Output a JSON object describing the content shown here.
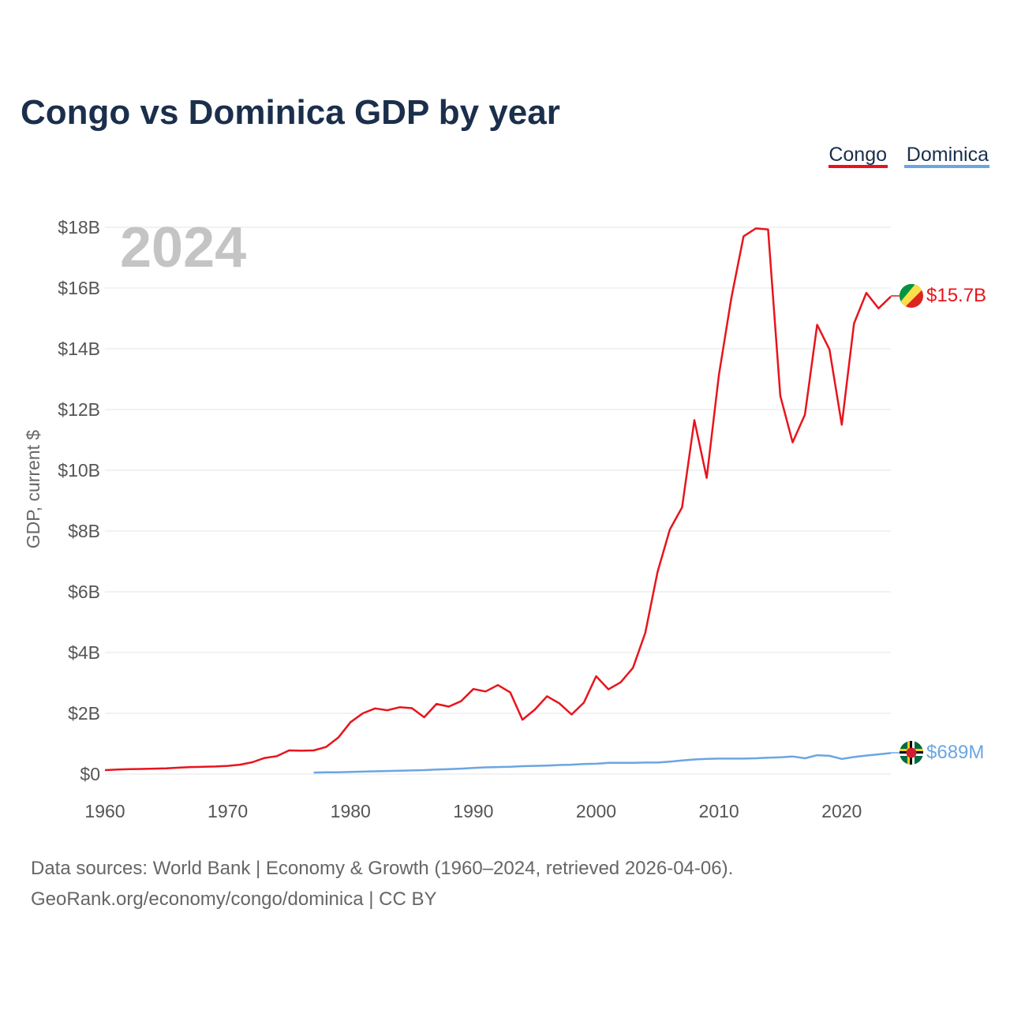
{
  "chart_data": {
    "type": "line",
    "title": "Congo vs Dominica GDP by year",
    "year_mark": "2024",
    "ylabel": "GDP, current $",
    "xlabel": "",
    "xlim": [
      1960,
      2024
    ],
    "ylim": [
      0,
      18
    ],
    "y_unit": "billions USD",
    "x_ticks": [
      1960,
      1970,
      1980,
      1990,
      2000,
      2010,
      2020
    ],
    "y_ticks": [
      {
        "value": 0,
        "label": "$0"
      },
      {
        "value": 2,
        "label": "$2B"
      },
      {
        "value": 4,
        "label": "$4B"
      },
      {
        "value": 6,
        "label": "$6B"
      },
      {
        "value": 8,
        "label": "$8B"
      },
      {
        "value": 10,
        "label": "$10B"
      },
      {
        "value": 12,
        "label": "$12B"
      },
      {
        "value": 14,
        "label": "$14B"
      },
      {
        "value": 16,
        "label": "$16B"
      },
      {
        "value": 18,
        "label": "$18B"
      }
    ],
    "legend_position": "top-right",
    "series": [
      {
        "name": "Congo",
        "color": "#e8141c",
        "end_label": "$15.7B",
        "flag_icon": "congo-flag-icon",
        "x": [
          1960,
          1961,
          1962,
          1963,
          1964,
          1965,
          1966,
          1967,
          1968,
          1969,
          1970,
          1971,
          1972,
          1973,
          1974,
          1975,
          1976,
          1977,
          1978,
          1979,
          1980,
          1981,
          1982,
          1983,
          1984,
          1985,
          1986,
          1987,
          1988,
          1989,
          1990,
          1991,
          1992,
          1993,
          1994,
          1995,
          1996,
          1997,
          1998,
          1999,
          2000,
          2001,
          2002,
          2003,
          2004,
          2005,
          2006,
          2007,
          2008,
          2009,
          2010,
          2011,
          2012,
          2013,
          2014,
          2015,
          2016,
          2017,
          2018,
          2019,
          2020,
          2021,
          2022,
          2023,
          2024
        ],
        "values": [
          0.13,
          0.15,
          0.16,
          0.17,
          0.18,
          0.19,
          0.21,
          0.23,
          0.24,
          0.25,
          0.27,
          0.31,
          0.39,
          0.53,
          0.59,
          0.78,
          0.77,
          0.78,
          0.89,
          1.2,
          1.71,
          2.0,
          2.16,
          2.1,
          2.2,
          2.17,
          1.87,
          2.31,
          2.22,
          2.4,
          2.8,
          2.72,
          2.93,
          2.69,
          1.79,
          2.12,
          2.56,
          2.33,
          1.96,
          2.35,
          3.22,
          2.79,
          3.02,
          3.5,
          4.65,
          6.65,
          8.05,
          8.78,
          11.65,
          9.75,
          13.14,
          15.65,
          17.7,
          17.96,
          17.93,
          12.45,
          10.92,
          11.83,
          14.79,
          13.98,
          11.5,
          14.83,
          15.84,
          15.33,
          15.72
        ]
      },
      {
        "name": "Dominica",
        "color": "#6aa6e2",
        "end_label": "$689M",
        "flag_icon": "dominica-flag-icon",
        "x": [
          1977,
          1978,
          1979,
          1980,
          1981,
          1982,
          1983,
          1984,
          1985,
          1986,
          1987,
          1988,
          1989,
          1990,
          1991,
          1992,
          1993,
          1994,
          1995,
          1996,
          1997,
          1998,
          1999,
          2000,
          2001,
          2002,
          2003,
          2004,
          2005,
          2006,
          2007,
          2008,
          2009,
          2010,
          2011,
          2012,
          2013,
          2014,
          2015,
          2016,
          2017,
          2018,
          2019,
          2020,
          2021,
          2022,
          2023,
          2024
        ],
        "values": [
          0.05,
          0.06,
          0.06,
          0.07,
          0.08,
          0.09,
          0.1,
          0.11,
          0.12,
          0.13,
          0.15,
          0.16,
          0.18,
          0.2,
          0.22,
          0.23,
          0.24,
          0.26,
          0.27,
          0.28,
          0.3,
          0.31,
          0.33,
          0.34,
          0.37,
          0.37,
          0.37,
          0.38,
          0.38,
          0.41,
          0.45,
          0.48,
          0.5,
          0.51,
          0.51,
          0.51,
          0.52,
          0.54,
          0.55,
          0.58,
          0.52,
          0.62,
          0.6,
          0.5,
          0.56,
          0.61,
          0.65,
          0.69
        ]
      }
    ]
  },
  "footer": {
    "sources": "Data sources: World Bank | Economy & Growth (1960–2024, retrieved 2026-04-06).",
    "credit": "GeoRank.org/economy/congo/dominica | CC BY"
  }
}
